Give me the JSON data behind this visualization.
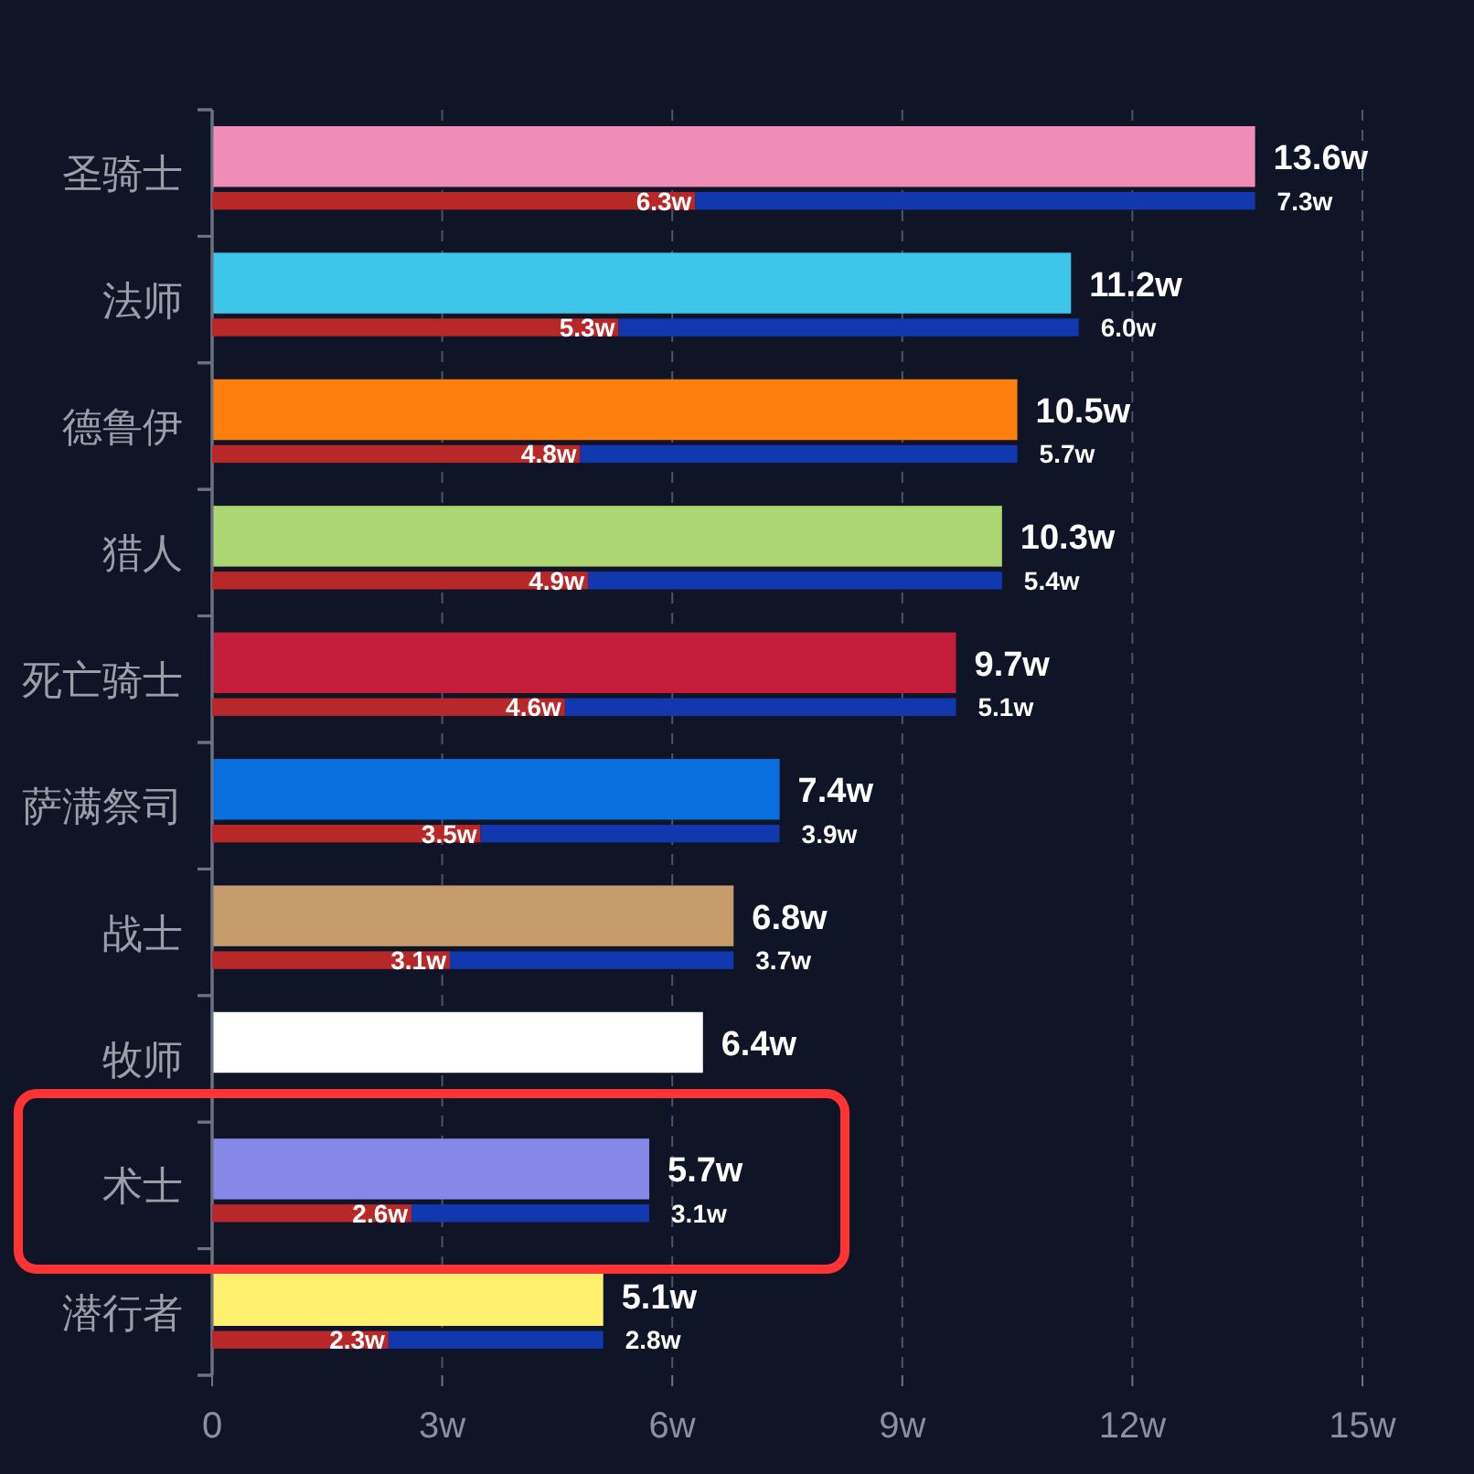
{
  "chart_data": [
    {
      "type": "bar",
      "orientation": "horizontal",
      "categories": [
        "圣骑士",
        "法师",
        "德鲁伊",
        "猎人",
        "死亡骑士",
        "萨满祭司",
        "战士",
        "牧师",
        "术士",
        "潜行者"
      ],
      "xlim": [
        0,
        15
      ],
      "xticks": [
        0,
        {
          "value": 3,
          "label": "3w"
        },
        {
          "value": 6,
          "label": "6w"
        },
        {
          "value": 9,
          "label": "9w"
        },
        {
          "value": 12,
          "label": "12w"
        },
        {
          "value": 15,
          "label": "15w"
        }
      ],
      "grid": "x",
      "series": [
        {
          "values": [
            13.6,
            11.2,
            10.5,
            10.3,
            9.7,
            7.4,
            6.8,
            6.4,
            5.7,
            5.1
          ],
          "colors": [
            "#f08cb8",
            "#3ec6ea",
            "#ff7f0e",
            "#acd672",
            "#c41e3a",
            "#0a6fde",
            "#c69c6d",
            "#ffffff",
            "#8787e8",
            "#fff06e"
          ],
          "value_labels": [
            "13.6w",
            "11.2w",
            "10.5w",
            "10.3w",
            "9.7w",
            "7.4w",
            "6.8w",
            "6.4w",
            "5.7w",
            "5.1w"
          ]
        }
      ]
    },
    {
      "type": "bar",
      "orientation": "horizontal",
      "stacked": true,
      "categories": [
        null,
        null,
        null,
        null,
        null,
        null,
        null,
        null,
        null,
        null
      ],
      "xlim": [
        0,
        15
      ],
      "series": [
        {
          "color": "#b82828",
          "values": [
            6.3,
            5.3,
            4.8,
            4.9,
            4.6,
            3.5,
            3.1,
            null,
            2.6,
            2.3
          ],
          "value_labels": [
            "6.3w",
            "5.3w",
            "4.8w",
            "4.9w",
            "4.6w",
            "3.5w",
            "3.1w",
            null,
            "2.6w",
            "2.3w"
          ]
        },
        {
          "color": "#1238b0",
          "values": [
            7.3,
            6.0,
            5.7,
            5.4,
            5.1,
            3.9,
            3.7,
            null,
            3.1,
            2.8
          ],
          "value_labels": [
            "7.3w",
            "6.0w",
            "5.7w",
            "5.4w",
            "5.1w",
            "3.9w",
            "3.7w",
            null,
            "3.1w",
            "2.8w"
          ]
        }
      ]
    }
  ]
}
